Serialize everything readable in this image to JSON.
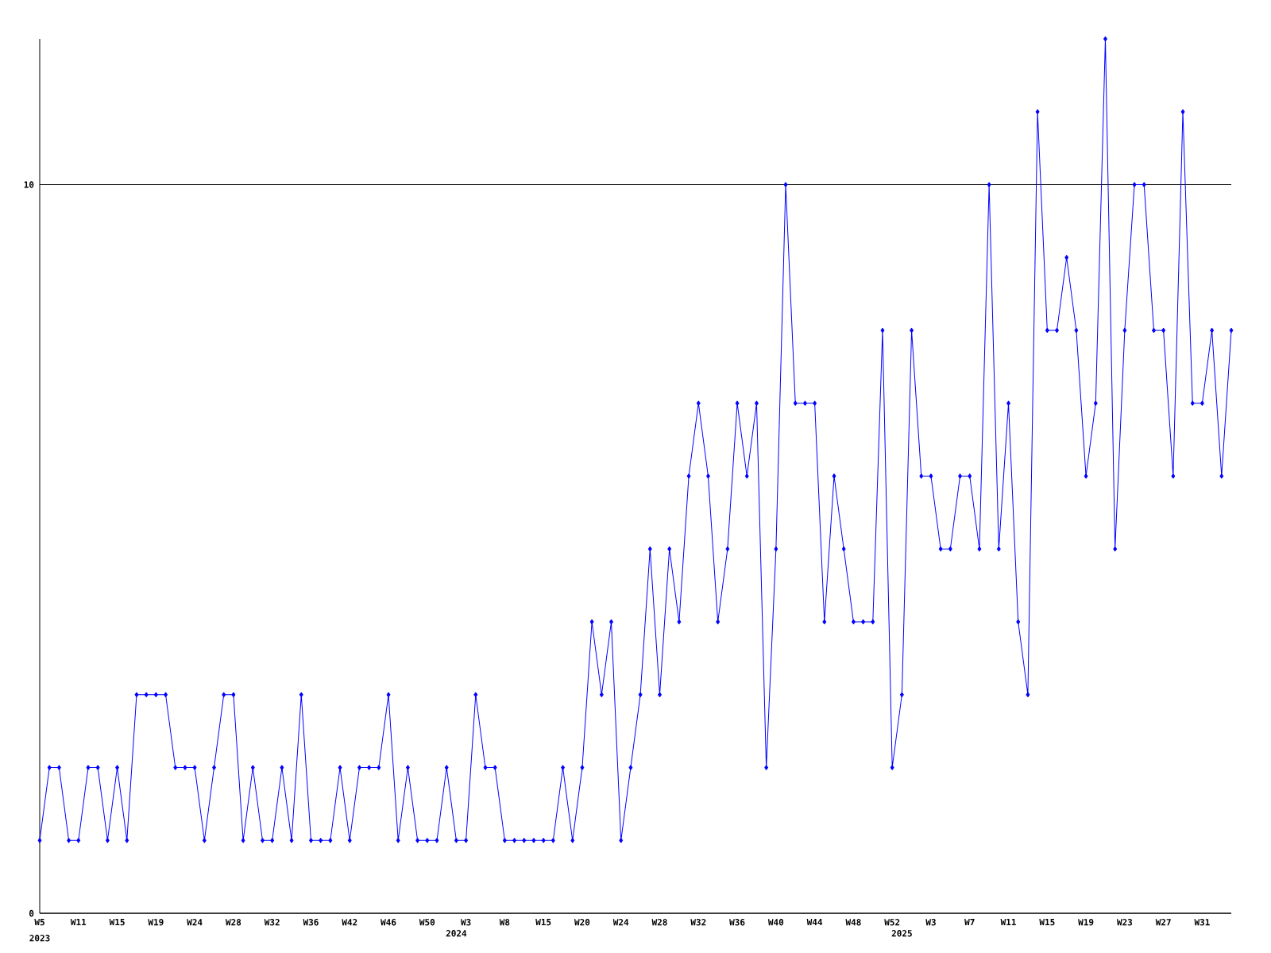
{
  "chart_data": {
    "type": "line",
    "categories": [
      "W5",
      null,
      null,
      null,
      "W11",
      null,
      null,
      null,
      "W15",
      null,
      null,
      null,
      "W19",
      null,
      null,
      null,
      "W24",
      null,
      null,
      null,
      "W28",
      null,
      null,
      null,
      "W32",
      null,
      null,
      null,
      "W36",
      null,
      null,
      null,
      "W42",
      null,
      null,
      null,
      "W46",
      null,
      null,
      null,
      "W50",
      null,
      null,
      "2024",
      "W3",
      null,
      null,
      null,
      "W8",
      null,
      null,
      null,
      "W15",
      null,
      null,
      null,
      "W20",
      null,
      null,
      null,
      "W24",
      null,
      null,
      null,
      "W28",
      null,
      null,
      null,
      "W32",
      null,
      null,
      null,
      "W36",
      null,
      null,
      null,
      "W40",
      null,
      null,
      null,
      "W44",
      null,
      null,
      null,
      "W48",
      null,
      null,
      null,
      "W52",
      "2025",
      null,
      null,
      "W3",
      null,
      null,
      null,
      "W7",
      null,
      null,
      null,
      "W11",
      null,
      null,
      null,
      "W15",
      null,
      null,
      null,
      "W19",
      null,
      null,
      null,
      "W23",
      null,
      null,
      null,
      "W27",
      null,
      null,
      null,
      "W31",
      null,
      null,
      null
    ],
    "values": [
      1,
      2,
      2,
      1,
      1,
      2,
      2,
      1,
      2,
      1,
      3,
      3,
      3,
      3,
      2,
      2,
      2,
      1,
      2,
      3,
      3,
      1,
      2,
      1,
      1,
      2,
      1,
      3,
      1,
      1,
      1,
      2,
      1,
      2,
      2,
      2,
      3,
      1,
      2,
      1,
      1,
      1,
      2,
      1,
      1,
      3,
      2,
      2,
      1,
      1,
      1,
      1,
      1,
      1,
      2,
      1,
      2,
      4,
      3,
      4,
      1,
      2,
      3,
      5,
      3,
      5,
      4,
      6,
      7,
      6,
      4,
      5,
      7,
      6,
      7,
      2,
      5,
      10,
      7,
      7,
      7,
      4,
      6,
      5,
      4,
      4,
      4,
      8,
      2,
      3,
      8,
      6,
      6,
      5,
      5,
      6,
      6,
      5,
      10,
      5,
      7,
      4,
      3,
      11,
      8,
      8,
      9,
      8,
      6,
      7,
      12,
      5,
      8,
      10,
      10,
      8,
      8,
      6,
      11,
      7,
      7,
      8,
      6,
      8
    ],
    "color": "#0000ff",
    "ylim": [
      0,
      12
    ],
    "yticks": [
      0,
      10
    ],
    "grid": "y",
    "marker": "diamond",
    "line_style": "solid",
    "annotations": [
      "2023"
    ]
  }
}
